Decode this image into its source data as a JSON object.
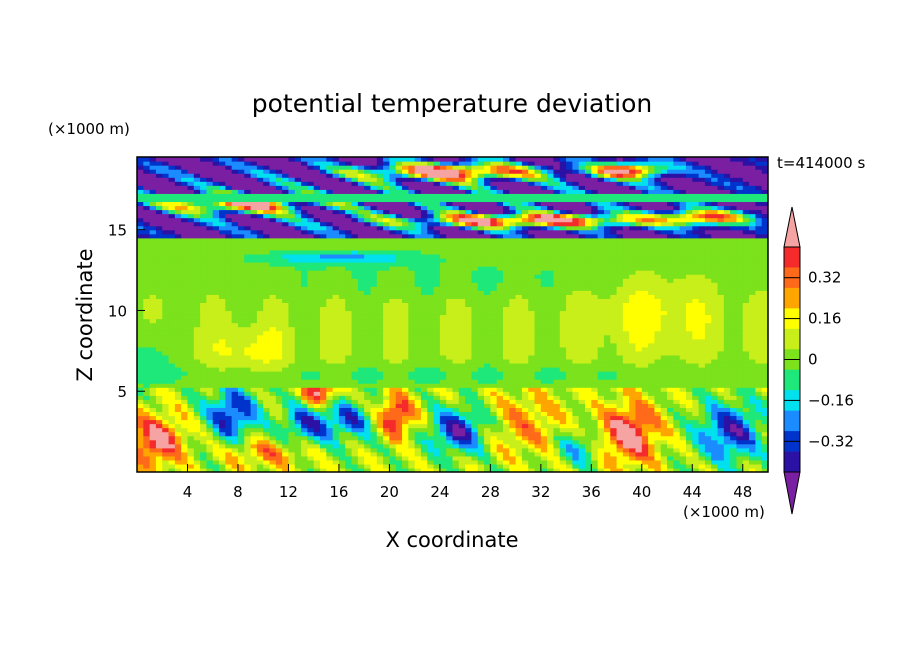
{
  "chart_data": {
    "type": "heatmap",
    "title": "potential temperature deviation",
    "xlabel": "X coordinate",
    "ylabel": "Z coordinate",
    "x_unit": "(×1000 m)",
    "y_unit": "(×1000 m)",
    "time_label": "t=414000 s",
    "xlim": [
      0,
      50
    ],
    "ylim": [
      0,
      19.5
    ],
    "x_ticks": [
      4,
      8,
      12,
      16,
      20,
      24,
      28,
      32,
      36,
      40,
      44,
      48
    ],
    "y_ticks": [
      5,
      10,
      15
    ],
    "colorbar": {
      "levels": [
        -0.48,
        -0.4,
        -0.32,
        -0.24,
        -0.16,
        -0.08,
        0,
        0.08,
        0.16,
        0.24,
        0.32,
        0.4,
        0.48
      ],
      "labels": [
        "0.32",
        "0.16",
        "0",
        "−0.16",
        "−0.32"
      ],
      "label_values": [
        0.32,
        0.16,
        0,
        -0.16,
        -0.32
      ],
      "colors": [
        "#7b1fa2",
        "#2c11a5",
        "#0033cc",
        "#1a8cff",
        "#00e0ee",
        "#1ee87a",
        "#7be21c",
        "#c8ef1a",
        "#ffff00",
        "#ffa500",
        "#ff6a1a",
        "#f52a2a",
        "#f5a3a3"
      ],
      "extend": "both"
    },
    "regions": [
      {
        "x": [
          0,
          50
        ],
        "z": [
          5.2,
          14.5
        ],
        "value": 0.04,
        "note": "broad near-zero field"
      },
      {
        "x": [
          0,
          50
        ],
        "z": [
          11.5,
          14.3
        ],
        "value": -0.04
      },
      {
        "x": [
          0,
          50
        ],
        "z": [
          14.5,
          19.5
        ],
        "value": -0.45,
        "note": "upper dark band"
      },
      {
        "x": [
          10,
          50
        ],
        "z": [
          15.2,
          19.4
        ],
        "value": 0.45,
        "note": "upper positive patches"
      },
      {
        "x": [
          0,
          50
        ],
        "z": [
          0,
          5.2
        ],
        "value": "mixed",
        "note": "turbulent lower layer"
      },
      {
        "x": [
          36,
          42
        ],
        "z": [
          0.3,
          4.5
        ],
        "value": 0.45,
        "note": "lower positive blob"
      },
      {
        "x": [
          28,
          35
        ],
        "z": [
          0.5,
          5
        ],
        "value": 0.2
      }
    ]
  }
}
